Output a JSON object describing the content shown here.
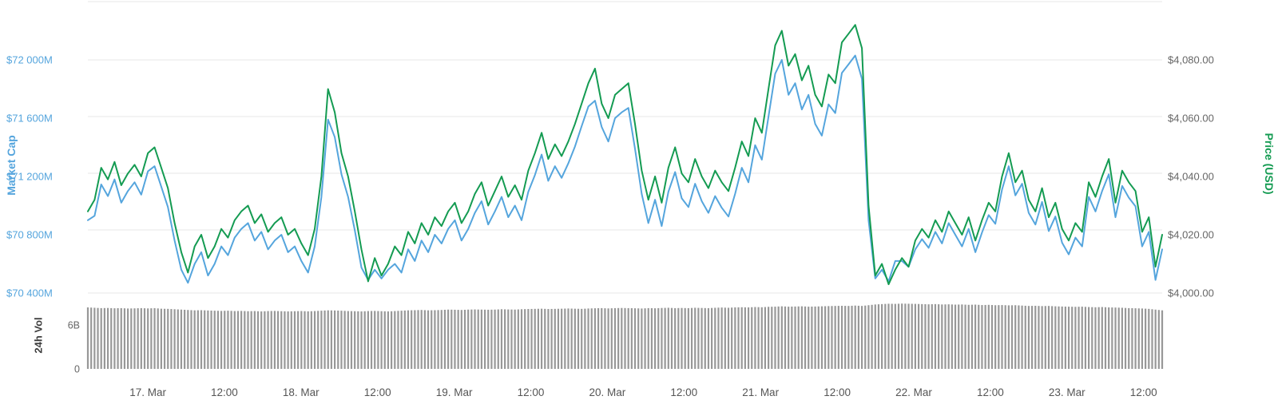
{
  "chart_data": {
    "type": "line",
    "title": "",
    "legend": "off",
    "grid": "horizontal",
    "x_ticks": [
      "17. Mar",
      "12:00",
      "18. Mar",
      "12:00",
      "19. Mar",
      "12:00",
      "20. Mar",
      "12:00",
      "21. Mar",
      "12:00",
      "22. Mar",
      "12:00",
      "23. Mar",
      "12:00"
    ],
    "left_axis": {
      "title": "Market Cap",
      "tick_labels": [
        "$70 400M",
        "$70 800M",
        "$71 200M",
        "$71 600M",
        "$72 000M"
      ],
      "tick_values": [
        70400,
        70800,
        71200,
        71600,
        72000
      ],
      "range": [
        70300,
        72450
      ],
      "title_color": "#55a5dd",
      "label_color": "#55a5dd"
    },
    "right_axis": {
      "title": "Price (USD)",
      "tick_labels": [
        "$4,000.00",
        "$4,020.00",
        "$4,040.00",
        "$4,060.00",
        "$4,080.00"
      ],
      "tick_values": [
        4000,
        4020,
        4040,
        4060,
        4080
      ],
      "range": [
        3995,
        4102
      ],
      "title_color": "#149b52",
      "label_color": "#666666"
    },
    "volume_axis": {
      "title": "24h Vol",
      "tick_labels": [
        "6B",
        "0"
      ],
      "tick_values": [
        6,
        0
      ],
      "title_color": "#3c3c3c",
      "label_color": "#666666"
    },
    "series": [
      {
        "name": "Market Cap",
        "axis": "left",
        "color": "#55a5dd",
        "unit": "$M",
        "values": [
          70900,
          70930,
          71145,
          71065,
          71180,
          71020,
          71100,
          71160,
          71075,
          71235,
          71270,
          71130,
          70990,
          70760,
          70560,
          70470,
          70600,
          70680,
          70520,
          70600,
          70720,
          70660,
          70780,
          70840,
          70880,
          70760,
          70820,
          70700,
          70760,
          70800,
          70680,
          70720,
          70620,
          70540,
          70720,
          71060,
          71590,
          71470,
          71215,
          71060,
          70830,
          70575,
          70490,
          70560,
          70500,
          70560,
          70600,
          70540,
          70700,
          70620,
          70760,
          70680,
          70800,
          70740,
          70840,
          70900,
          70760,
          70840,
          70950,
          71030,
          70870,
          70960,
          71060,
          70920,
          71000,
          70900,
          71095,
          71210,
          71350,
          71170,
          71270,
          71190,
          71290,
          71405,
          71545,
          71680,
          71720,
          71540,
          71440,
          71600,
          71640,
          71670,
          71390,
          71080,
          70880,
          71040,
          70860,
          71095,
          71230,
          71050,
          70990,
          71150,
          71030,
          70950,
          71065,
          70985,
          70925,
          71080,
          71260,
          71160,
          71415,
          71315,
          71610,
          71905,
          72000,
          71760,
          71840,
          71660,
          71760,
          71560,
          71480,
          71695,
          71635,
          71910,
          71970,
          72030,
          71870,
          70900,
          70500,
          70560,
          70480,
          70620,
          70620,
          70580,
          70700,
          70770,
          70710,
          70820,
          70740,
          70880,
          70800,
          70720,
          70840,
          70680,
          70815,
          70935,
          70875,
          71110,
          71270,
          71070,
          71150,
          70950,
          70870,
          71025,
          70825,
          70925,
          70745,
          70665,
          70780,
          70720,
          71060,
          70960,
          71100,
          71215,
          70920,
          71135,
          71055,
          70995,
          70720,
          70820,
          70490,
          70700
        ]
      },
      {
        "name": "Price (USD)",
        "axis": "right",
        "color": "#149b52",
        "unit": "$",
        "values": [
          4028,
          4032,
          4043,
          4039,
          4045,
          4037,
          4041,
          4044,
          4040,
          4048,
          4050,
          4043,
          4036,
          4024,
          4014,
          4007,
          4016,
          4020,
          4012,
          4016,
          4022,
          4019,
          4025,
          4028,
          4030,
          4024,
          4027,
          4021,
          4024,
          4026,
          4020,
          4022,
          4017,
          4013,
          4022,
          4040,
          4070,
          4062,
          4048,
          4040,
          4028,
          4015,
          4004,
          4012,
          4006,
          4010,
          4016,
          4013,
          4021,
          4017,
          4024,
          4020,
          4026,
          4023,
          4028,
          4031,
          4024,
          4028,
          4034,
          4038,
          4030,
          4035,
          4040,
          4033,
          4037,
          4032,
          4042,
          4048,
          4055,
          4046,
          4051,
          4047,
          4052,
          4058,
          4065,
          4072,
          4077,
          4065,
          4060,
          4068,
          4070,
          4072,
          4058,
          4042,
          4032,
          4040,
          4031,
          4043,
          4050,
          4041,
          4038,
          4046,
          4040,
          4036,
          4042,
          4038,
          4035,
          4043,
          4052,
          4047,
          4060,
          4055,
          4070,
          4085,
          4090,
          4078,
          4082,
          4073,
          4078,
          4068,
          4064,
          4075,
          4072,
          4086,
          4089,
          4092,
          4084,
          4030,
          4006,
          4010,
          4003,
          4008,
          4012,
          4009,
          4018,
          4022,
          4019,
          4025,
          4021,
          4028,
          4024,
          4020,
          4026,
          4018,
          4025,
          4031,
          4028,
          4040,
          4048,
          4038,
          4042,
          4032,
          4028,
          4036,
          4026,
          4031,
          4022,
          4018,
          4024,
          4021,
          4038,
          4033,
          4040,
          4046,
          4031,
          4042,
          4038,
          4035,
          4021,
          4026,
          4009,
          4020
        ]
      },
      {
        "name": "24h Vol",
        "type": "bar",
        "axis": "volume",
        "color": "#989898",
        "unit": "B",
        "values": [
          8.4,
          8.35,
          8.3,
          8.32,
          8.28,
          8.3,
          8.25,
          8.27,
          8.3,
          8.26,
          8.3,
          8.22,
          8.2,
          8.15,
          8.1,
          8.05,
          8.0,
          8.02,
          7.98,
          7.95,
          7.92,
          7.95,
          7.9,
          7.92,
          7.88,
          7.9,
          7.85,
          7.9,
          7.92,
          7.88,
          7.85,
          7.88,
          7.9,
          7.86,
          7.9,
          7.95,
          8.0,
          7.98,
          7.95,
          7.9,
          7.88,
          7.85,
          7.9,
          7.92,
          7.88,
          7.85,
          7.9,
          7.95,
          8.0,
          8.02,
          8.05,
          8.0,
          8.02,
          8.05,
          8.1,
          8.08,
          8.05,
          8.1,
          8.12,
          8.1,
          8.08,
          8.1,
          8.15,
          8.12,
          8.1,
          8.15,
          8.18,
          8.2,
          8.22,
          8.18,
          8.2,
          8.22,
          8.25,
          8.22,
          8.2,
          8.25,
          8.28,
          8.3,
          8.26,
          8.3,
          8.32,
          8.3,
          8.28,
          8.25,
          8.3,
          8.28,
          8.32,
          8.35,
          8.3,
          8.32,
          8.3,
          8.35,
          8.32,
          8.3,
          8.35,
          8.38,
          8.35,
          8.4,
          8.42,
          8.4,
          8.45,
          8.42,
          8.48,
          8.5,
          8.55,
          8.5,
          8.52,
          8.55,
          8.5,
          8.52,
          8.55,
          8.58,
          8.6,
          8.62,
          8.6,
          8.65,
          8.6,
          8.7,
          8.8,
          8.85,
          8.9,
          8.88,
          8.92,
          8.9,
          8.88,
          8.85,
          8.82,
          8.85,
          8.8,
          8.82,
          8.78,
          8.8,
          8.75,
          8.78,
          8.72,
          8.75,
          8.7,
          8.72,
          8.68,
          8.7,
          8.65,
          8.6,
          8.62,
          8.58,
          8.6,
          8.55,
          8.52,
          8.5,
          8.48,
          8.5,
          8.45,
          8.42,
          8.45,
          8.4,
          8.38,
          8.35,
          8.3,
          8.28,
          8.25,
          8.2,
          8.1,
          8.0
        ]
      }
    ],
    "gridline_color": "#e7e7e7",
    "x_label_color": "#555555"
  }
}
